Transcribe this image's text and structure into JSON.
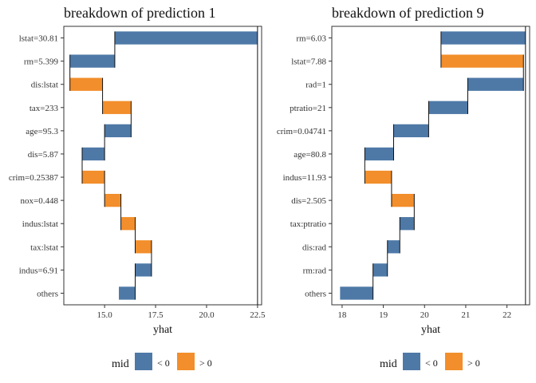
{
  "colors": {
    "neg": "#4e79a7",
    "pos": "#f28e2b"
  },
  "legend": {
    "title": "mid",
    "items": [
      {
        "label": "< 0",
        "color": "#4e79a7"
      },
      {
        "label": "> 0",
        "color": "#f28e2b"
      }
    ]
  },
  "chart_data": [
    {
      "type": "waterfall-bar",
      "title": "breakdown of prediction 1",
      "xlabel": "yhat",
      "ylabel": "",
      "xlim": [
        13.0,
        22.7
      ],
      "xticks": [
        15.0,
        17.5,
        20.0,
        22.5
      ],
      "xtick_labels": [
        "15.0",
        "17.5",
        "20.0",
        "22.5"
      ],
      "final_prediction": 22.5,
      "grid": false,
      "legend_position": "bottom",
      "bars": [
        {
          "label": "lstat=30.81",
          "start": 22.5,
          "end": 15.5,
          "sign": "< 0"
        },
        {
          "label": "rm=5.399",
          "start": 15.5,
          "end": 13.3,
          "sign": "< 0"
        },
        {
          "label": "dis:lstat",
          "start": 13.3,
          "end": 14.9,
          "sign": "> 0"
        },
        {
          "label": "tax=233",
          "start": 14.9,
          "end": 16.3,
          "sign": "> 0"
        },
        {
          "label": "age=95.3",
          "start": 16.3,
          "end": 15.0,
          "sign": "< 0"
        },
        {
          "label": "dis=5.87",
          "start": 15.0,
          "end": 13.9,
          "sign": "< 0"
        },
        {
          "label": "crim=0.25387",
          "start": 13.9,
          "end": 15.0,
          "sign": "> 0"
        },
        {
          "label": "nox=0.448",
          "start": 15.0,
          "end": 15.8,
          "sign": "> 0"
        },
        {
          "label": "indus:lstat",
          "start": 15.8,
          "end": 16.5,
          "sign": "> 0"
        },
        {
          "label": "tax:lstat",
          "start": 16.5,
          "end": 17.3,
          "sign": "> 0"
        },
        {
          "label": "indus=6.91",
          "start": 17.3,
          "end": 16.5,
          "sign": "< 0"
        },
        {
          "label": "others",
          "start": 16.5,
          "end": 15.7,
          "sign": "< 0"
        }
      ]
    },
    {
      "type": "waterfall-bar",
      "title": "breakdown of prediction 9",
      "xlabel": "yhat",
      "ylabel": "",
      "xlim": [
        17.75,
        22.55
      ],
      "xticks": [
        18,
        19,
        20,
        21,
        22
      ],
      "xtick_labels": [
        "18",
        "19",
        "20",
        "21",
        "22"
      ],
      "final_prediction": 22.45,
      "grid": false,
      "legend_position": "bottom",
      "bars": [
        {
          "label": "rm=6.03",
          "start": 22.45,
          "end": 20.4,
          "sign": "< 0"
        },
        {
          "label": "lstat=7.88",
          "start": 20.4,
          "end": 22.4,
          "sign": "> 0"
        },
        {
          "label": "rad=1",
          "start": 22.4,
          "end": 21.05,
          "sign": "< 0"
        },
        {
          "label": "ptratio=21",
          "start": 21.05,
          "end": 20.1,
          "sign": "< 0"
        },
        {
          "label": "crim=0.04741",
          "start": 20.1,
          "end": 19.25,
          "sign": "< 0"
        },
        {
          "label": "age=80.8",
          "start": 19.25,
          "end": 18.55,
          "sign": "< 0"
        },
        {
          "label": "indus=11.93",
          "start": 18.55,
          "end": 19.2,
          "sign": "> 0"
        },
        {
          "label": "dis=2.505",
          "start": 19.2,
          "end": 19.75,
          "sign": "> 0"
        },
        {
          "label": "tax:ptratio",
          "start": 19.75,
          "end": 19.4,
          "sign": "< 0"
        },
        {
          "label": "dis:rad",
          "start": 19.4,
          "end": 19.1,
          "sign": "< 0"
        },
        {
          "label": "rm:rad",
          "start": 19.1,
          "end": 18.75,
          "sign": "< 0"
        },
        {
          "label": "others",
          "start": 18.75,
          "end": 17.95,
          "sign": "< 0"
        }
      ]
    }
  ]
}
